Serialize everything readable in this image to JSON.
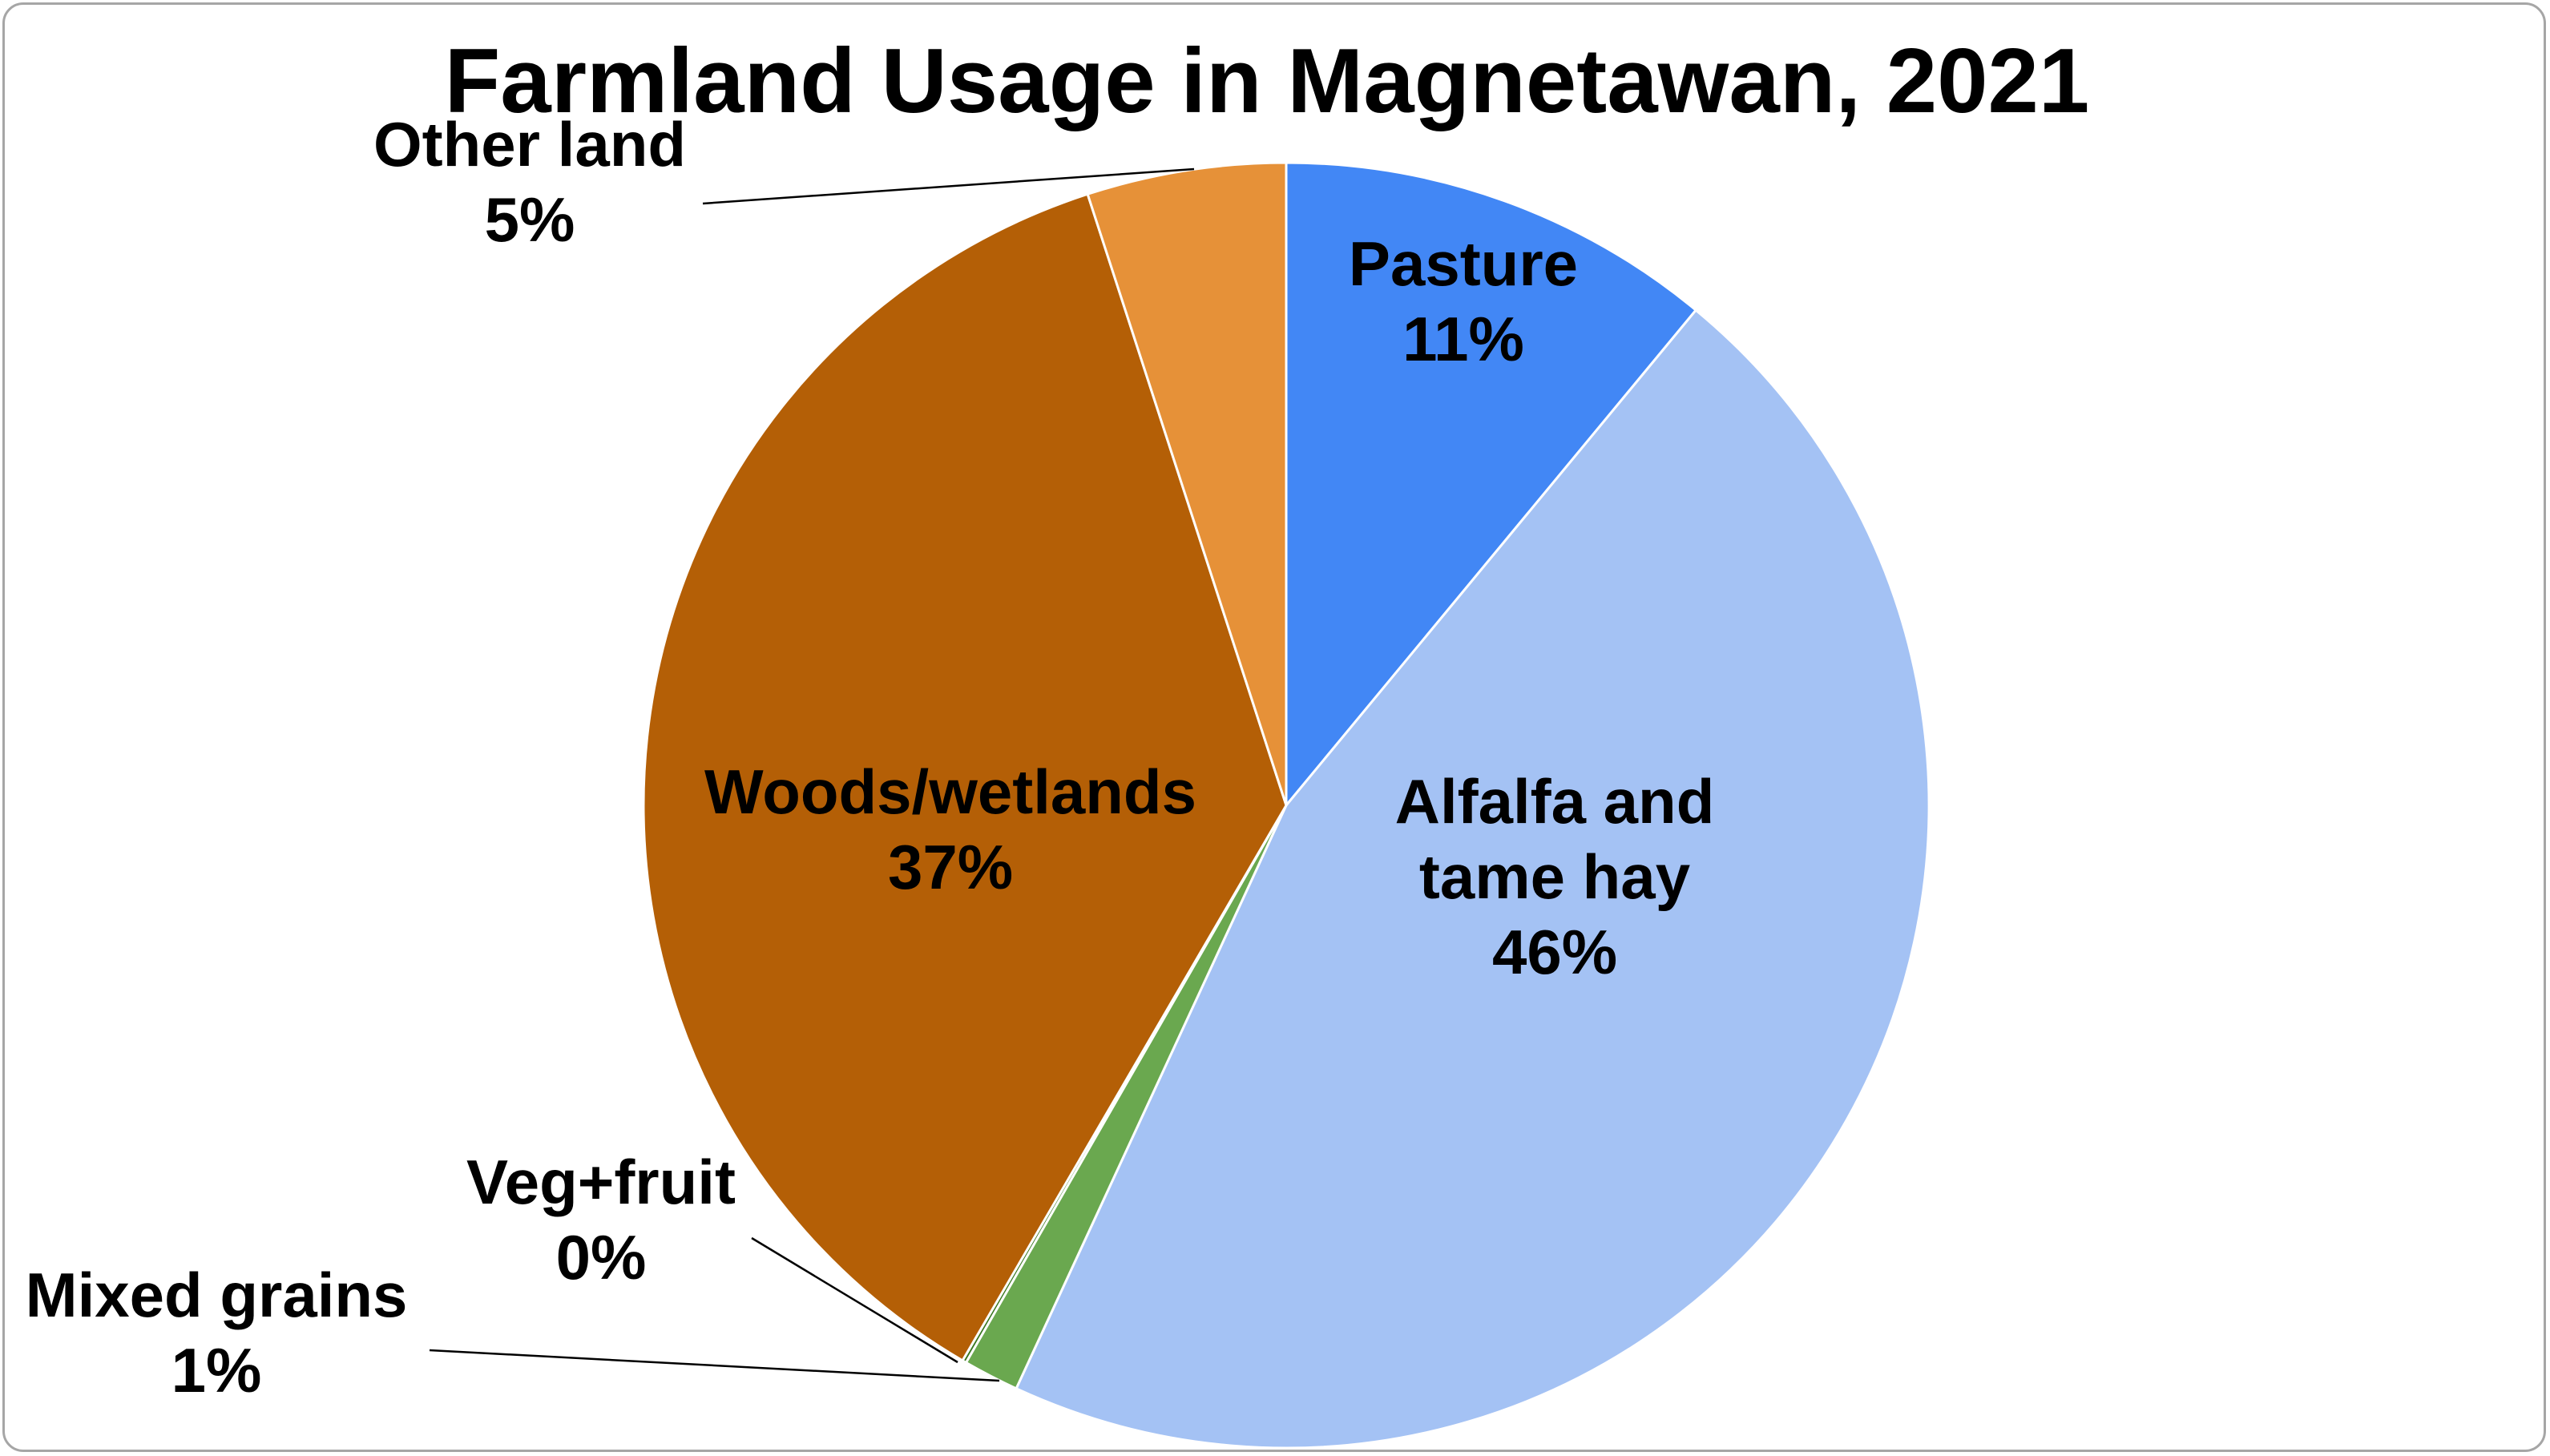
{
  "chart_data": {
    "type": "pie",
    "title": "Farmland Usage in Magnetawan, 2021",
    "slices": [
      {
        "label": "Pasture",
        "value": 11.0,
        "percent_label": "11%",
        "color": "#4287f5",
        "label_lines": [
          "Pasture",
          "11%"
        ]
      },
      {
        "label": "Alfalfa and tame hay",
        "value": 45.9,
        "percent_label": "46%",
        "color": "#a4c2f4",
        "label_lines": [
          "Alfalfa and",
          "tame hay",
          "46%"
        ]
      },
      {
        "label": "Mixed grains",
        "value": 1.4,
        "percent_label": "1%",
        "color": "#6aa84f",
        "label_lines": [
          "Mixed grains",
          "1%"
        ]
      },
      {
        "label": "Veg+fruit",
        "value": 0.1,
        "percent_label": "0%",
        "color": "#38761d",
        "label_lines": [
          "Veg+fruit",
          "0%"
        ]
      },
      {
        "label": "Woods/wetlands",
        "value": 36.6,
        "percent_label": "37%",
        "color": "#b45f06",
        "label_lines": [
          "Woods/wetlands",
          "37%"
        ]
      },
      {
        "label": "Other land",
        "value": 5.0,
        "percent_label": "5%",
        "color": "#e69138",
        "label_lines": [
          "Other land",
          "5%"
        ]
      }
    ],
    "start_angle": "12 o'clock",
    "direction": "clockwise",
    "legend": "none"
  }
}
